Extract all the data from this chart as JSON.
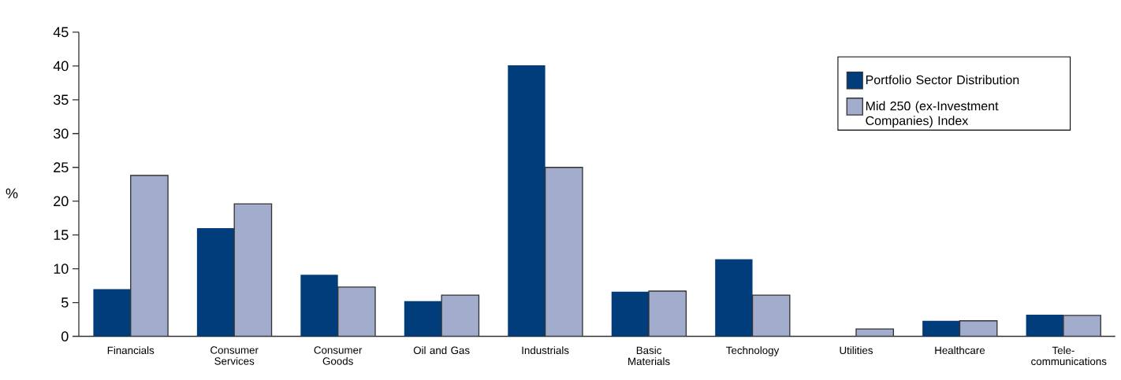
{
  "chart_data": {
    "type": "bar",
    "ylabel": "%",
    "categories": [
      "Financials",
      "Consumer Services",
      "Consumer Goods",
      "Oil and Gas",
      "Industrials",
      "Basic Materials",
      "Technology",
      "Utilities",
      "Healthcare",
      "Tele-communications"
    ],
    "series": [
      {
        "name": "Portfolio Sector Distribution",
        "color": "#023d7b",
        "values": [
          7.0,
          16.0,
          9.1,
          5.2,
          40.1,
          6.6,
          11.4,
          0,
          2.3,
          3.2
        ]
      },
      {
        "name": "Mid 250 (ex-Investment Companies) Index",
        "color": "#a2accd",
        "values": [
          23.8,
          19.6,
          7.3,
          6.1,
          25.0,
          6.7,
          6.1,
          1.1,
          2.3,
          3.1
        ]
      }
    ],
    "ylim": [
      0,
      45
    ],
    "yticks": [
      0,
      5,
      10,
      15,
      20,
      25,
      30,
      35,
      40,
      45
    ],
    "grid": false,
    "legend": "top right"
  }
}
